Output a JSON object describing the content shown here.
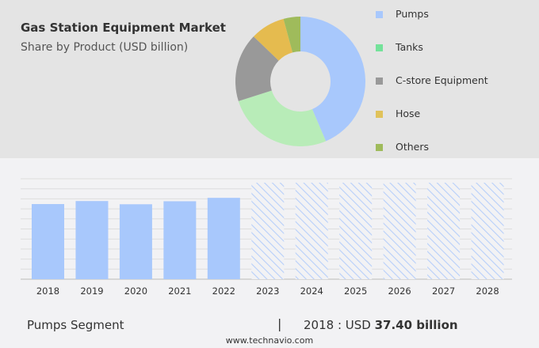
{
  "header": {
    "title": "Gas Station Equipment Market",
    "subtitle": "Share by Product (USD billion)"
  },
  "chart_data": [
    {
      "type": "pie",
      "variant": "donut",
      "title": "Gas Station Equipment Market",
      "subtitle": "Share by Product (USD billion)",
      "labels": [
        "Pumps",
        "Tanks",
        "C-store Equipment",
        "Hose",
        "Others"
      ],
      "values": [
        43.6,
        26.5,
        17.1,
        8.6,
        4.2
      ],
      "colors": [
        "#a8c8fc",
        "#b8ecb8",
        "#999999",
        "#e5bb4f",
        "#9fbb5b"
      ],
      "legend_colors": [
        "#a8c8fc",
        "#74e29a",
        "#999999",
        "#e0c25a",
        "#9fbb5b"
      ],
      "legend": "right"
    },
    {
      "type": "bar",
      "categories": [
        "2018",
        "2019",
        "2020",
        "2021",
        "2022",
        "2023",
        "2024",
        "2025",
        "2026",
        "2027",
        "2028"
      ],
      "values": [
        37.4,
        38.9,
        37.3,
        38.8,
        40.5,
        null,
        null,
        null,
        null,
        null,
        null
      ],
      "forecast_categories": [
        "2023",
        "2024",
        "2025",
        "2026",
        "2027",
        "2028"
      ],
      "ylim": [
        0,
        50
      ],
      "grid": true,
      "color": "#a8c8fc"
    }
  ],
  "footer": {
    "segment": "Pumps Segment",
    "separator": "|",
    "year_label": "2018 : USD ",
    "value_label": "37.40 billion",
    "url": "www.technavio.com"
  }
}
